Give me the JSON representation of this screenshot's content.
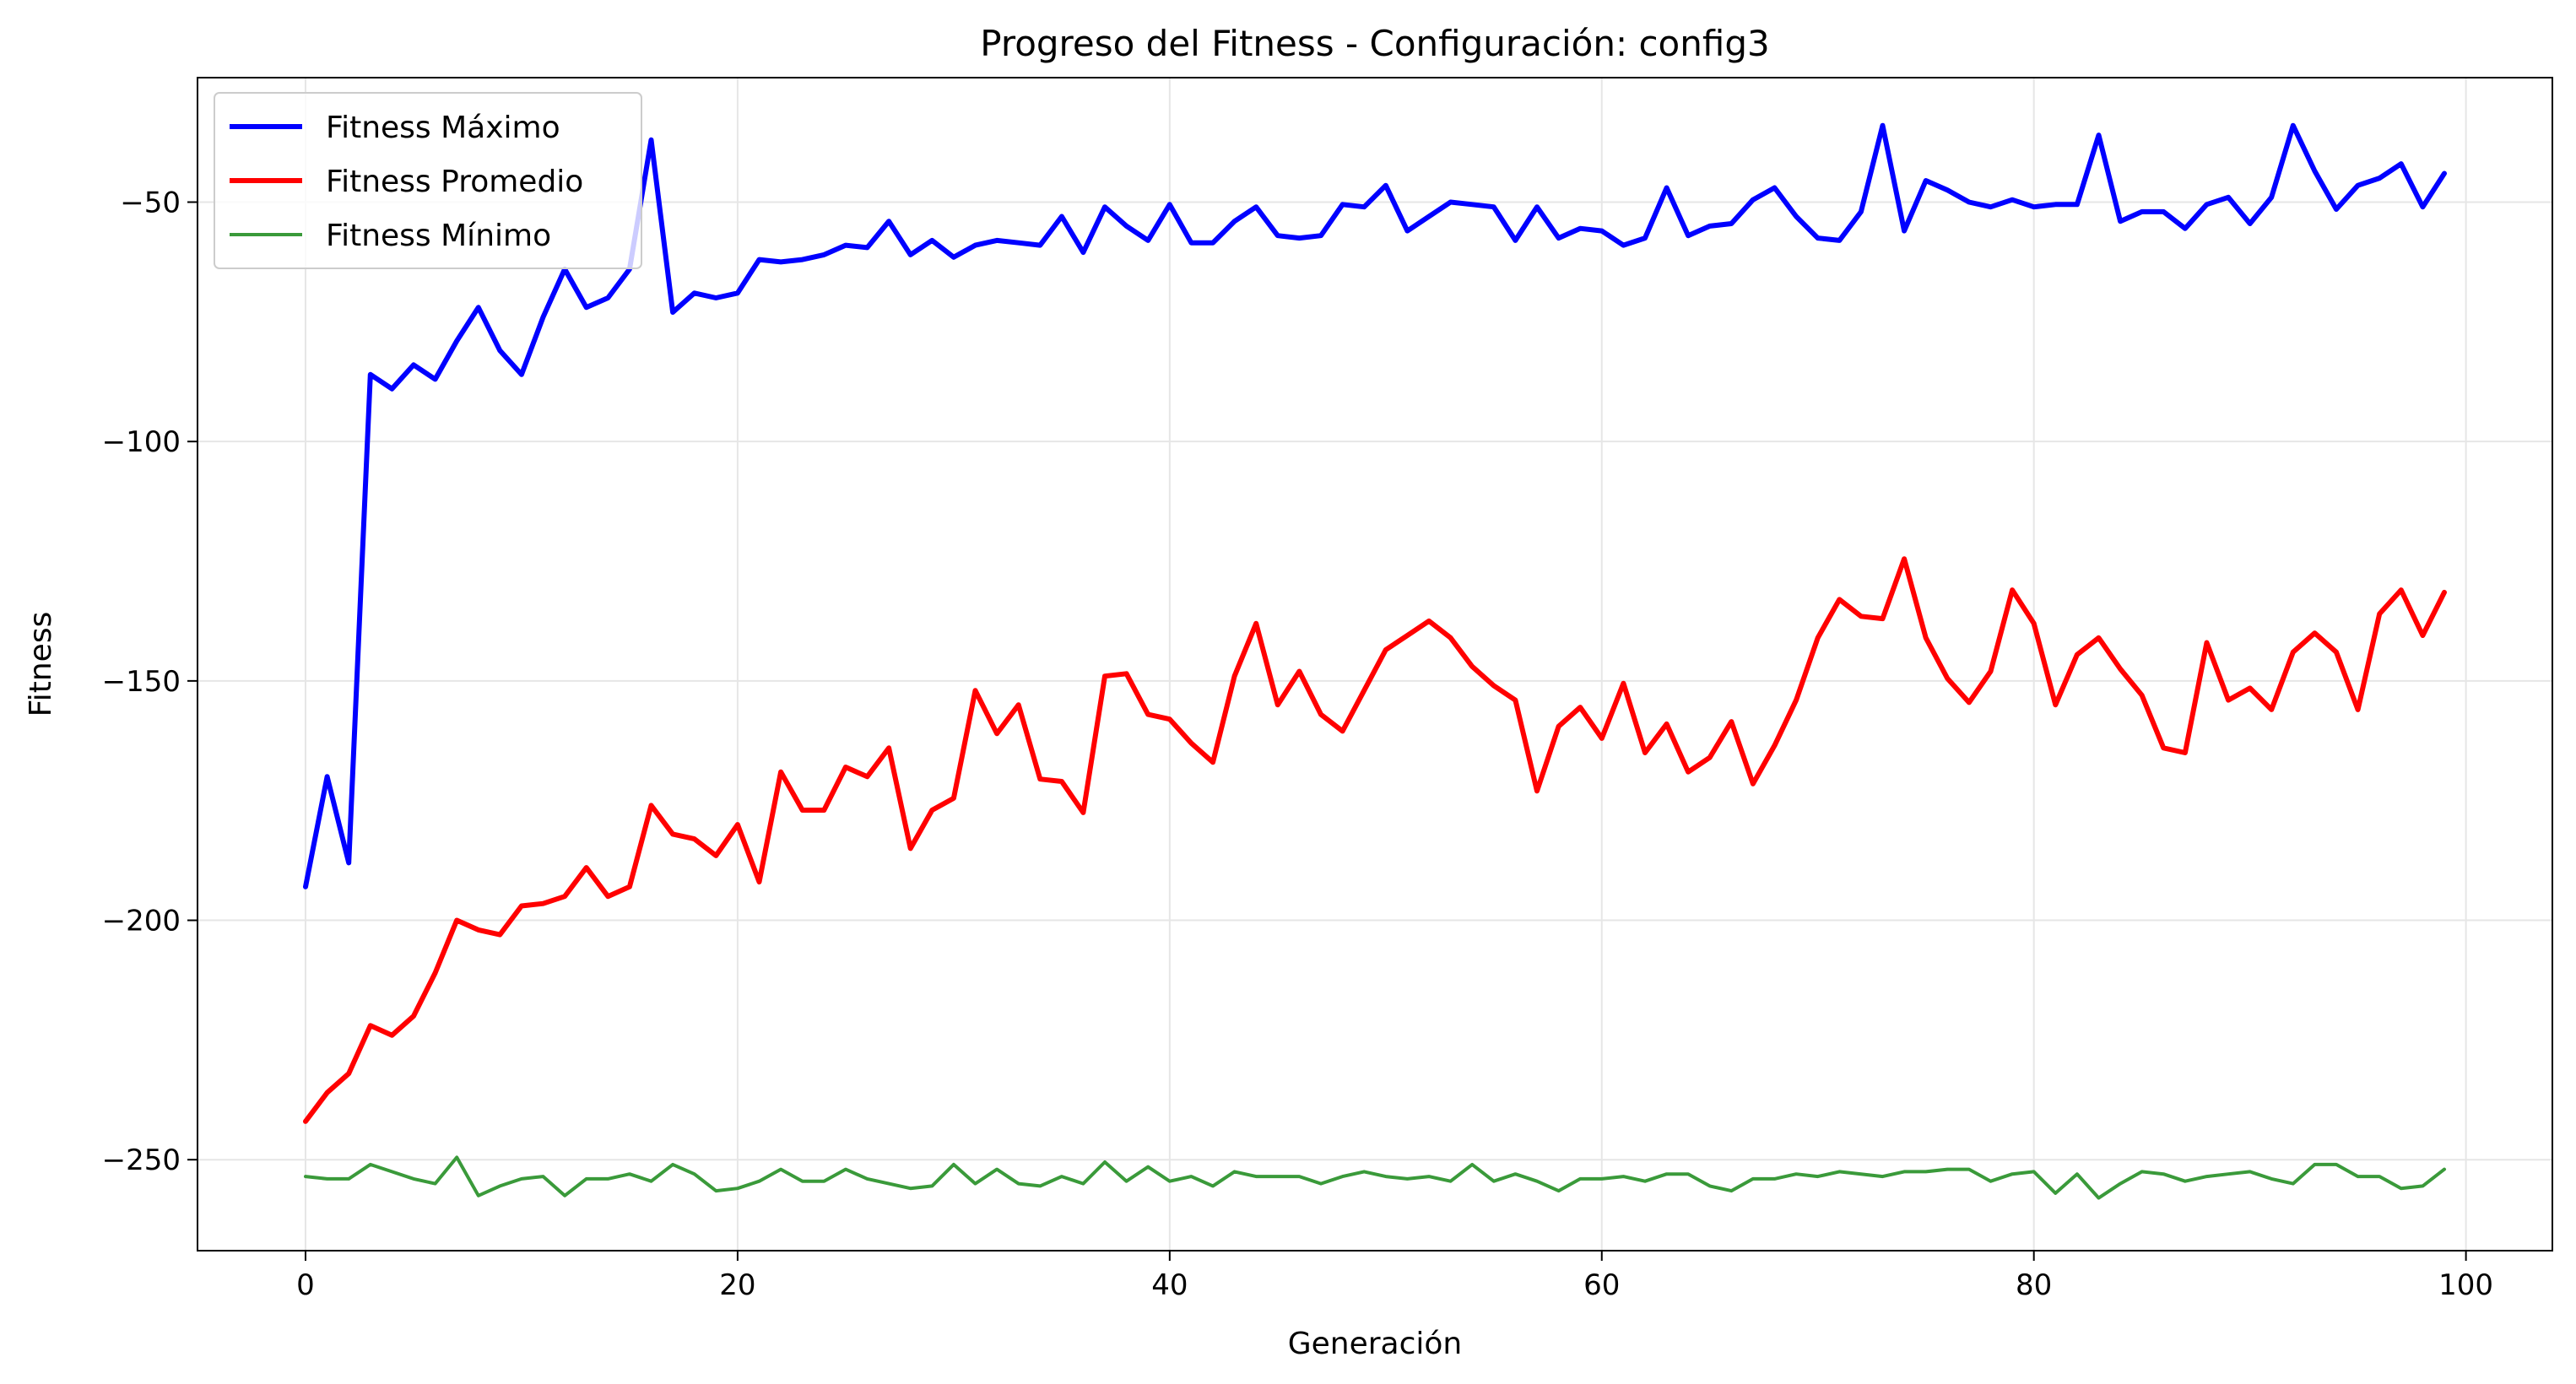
{
  "chart_data": {
    "type": "line",
    "title": "Progreso del Fitness - Configuración: config3",
    "xlabel": "Generación",
    "ylabel": "Fitness",
    "xlim": [
      -5,
      104
    ],
    "ylim": [
      -269,
      -24
    ],
    "xticks": [
      0,
      20,
      40,
      60,
      80,
      100
    ],
    "yticks": [
      -50,
      -100,
      -150,
      -200,
      -250
    ],
    "xtick_labels": [
      "0",
      "20",
      "40",
      "60",
      "80",
      "100"
    ],
    "ytick_labels": [
      "−50",
      "−100",
      "−150",
      "−200",
      "−250"
    ],
    "grid": true,
    "legend_position": "upper left",
    "series": [
      {
        "name": "Fitness Máximo",
        "color": "#0000ff",
        "values": [
          -193,
          -170,
          -188,
          -86,
          -89,
          -84,
          -87,
          -79,
          -72,
          -81,
          -86,
          -74,
          -64,
          -72,
          -70,
          -64,
          -37,
          -73,
          -69,
          -70,
          -69,
          -62,
          -62.5,
          -62,
          -61,
          -59,
          -59.5,
          -54,
          -61,
          -58,
          -61.5,
          -59,
          -58,
          -58.5,
          -59,
          -53,
          -60.5,
          -51,
          -55,
          -58,
          -50.5,
          -58.5,
          -58.5,
          -54,
          -51,
          -57,
          -57.5,
          -57,
          -50.5,
          -51,
          -46.5,
          -56,
          -53,
          -50,
          -50.5,
          -51,
          -58,
          -51,
          -57.5,
          -55.5,
          -56,
          -59,
          -57.5,
          -47,
          -57,
          -55,
          -54.5,
          -49.5,
          -47,
          -53,
          -57.5,
          -58,
          -52,
          -34,
          -56,
          -45.5,
          -47.5,
          -50,
          -51,
          -49.5,
          -51,
          -50.5,
          -50.5,
          -36,
          -54,
          -52,
          -52,
          -55.5,
          -50.5,
          -49,
          -54.5,
          -49,
          -34,
          -43.5,
          -51.5,
          -46.5,
          -45,
          -42,
          -51,
          -44
        ]
      },
      {
        "name": "Fitness Promedio",
        "color": "#ff0000",
        "values": [
          -242,
          -236,
          -232,
          -222,
          -224,
          -220,
          -211,
          -200,
          -202,
          -203,
          -197,
          -196.5,
          -195,
          -189,
          -195,
          -193,
          -176,
          -182,
          -183,
          -186.5,
          -180,
          -192,
          -169,
          -177,
          -177,
          -168,
          -170,
          -164,
          -185,
          -177,
          -174.5,
          -152,
          -161,
          -155,
          -170.5,
          -171,
          -177.5,
          -149,
          -148.5,
          -157,
          -158,
          -163,
          -167,
          -149,
          -138,
          -155,
          -148,
          -157,
          -160.5,
          -152,
          -143.5,
          -140.5,
          -137.5,
          -141,
          -147,
          -151,
          -154,
          -173,
          -159.5,
          -155.5,
          -162,
          -150.5,
          -165,
          -159,
          -169,
          -166,
          -158.5,
          -171.5,
          -163.5,
          -154,
          -141,
          -133,
          -136.5,
          -137,
          -124.5,
          -141,
          -149.5,
          -154.5,
          -148,
          -131,
          -138,
          -155,
          -144.5,
          -141,
          -147.5,
          -153,
          -164,
          -165,
          -142,
          -154,
          -151.5,
          -156,
          -144,
          -140,
          -144,
          -156,
          -136,
          -131,
          -140.5,
          -131.5
        ]
      },
      {
        "name": "Fitness Mínimo",
        "color": "#3a9a3a",
        "values": [
          -253.5,
          -254,
          -254,
          -251,
          -252.5,
          -254,
          -255,
          -249.5,
          -257.5,
          -255.5,
          -254,
          -253.5,
          -257.5,
          -254,
          -254,
          -253,
          -254.5,
          -251,
          -253,
          -256.5,
          -256,
          -254.5,
          -252,
          -254.5,
          -254.5,
          -252,
          -254,
          -255,
          -256,
          -255.5,
          -251,
          -255,
          -252,
          -255,
          -255.5,
          -253.5,
          -255,
          -250.5,
          -254.5,
          -251.5,
          -254.5,
          -253.5,
          -255.5,
          -252.5,
          -253.5,
          -253.5,
          -253.5,
          -255,
          -253.5,
          -252.5,
          -253.5,
          -254,
          -253.5,
          -254.5,
          -251,
          -254.5,
          -253,
          -254.5,
          -256.5,
          -254,
          -254,
          -253.5,
          -254.5,
          -253,
          -253,
          -255.5,
          -256.5,
          -254,
          -254,
          -253,
          -253.5,
          -252.5,
          -253,
          -253.5,
          -252.5,
          -252.5,
          -252,
          -252,
          -254.5,
          -253,
          -252.5,
          -257,
          -253,
          -258,
          -255,
          -252.5,
          -253,
          -254.5,
          -253.5,
          -253,
          -252.5,
          -254,
          -255,
          -251,
          -251,
          -253.5,
          -253.5,
          -256,
          -255.5,
          -252
        ]
      }
    ]
  }
}
